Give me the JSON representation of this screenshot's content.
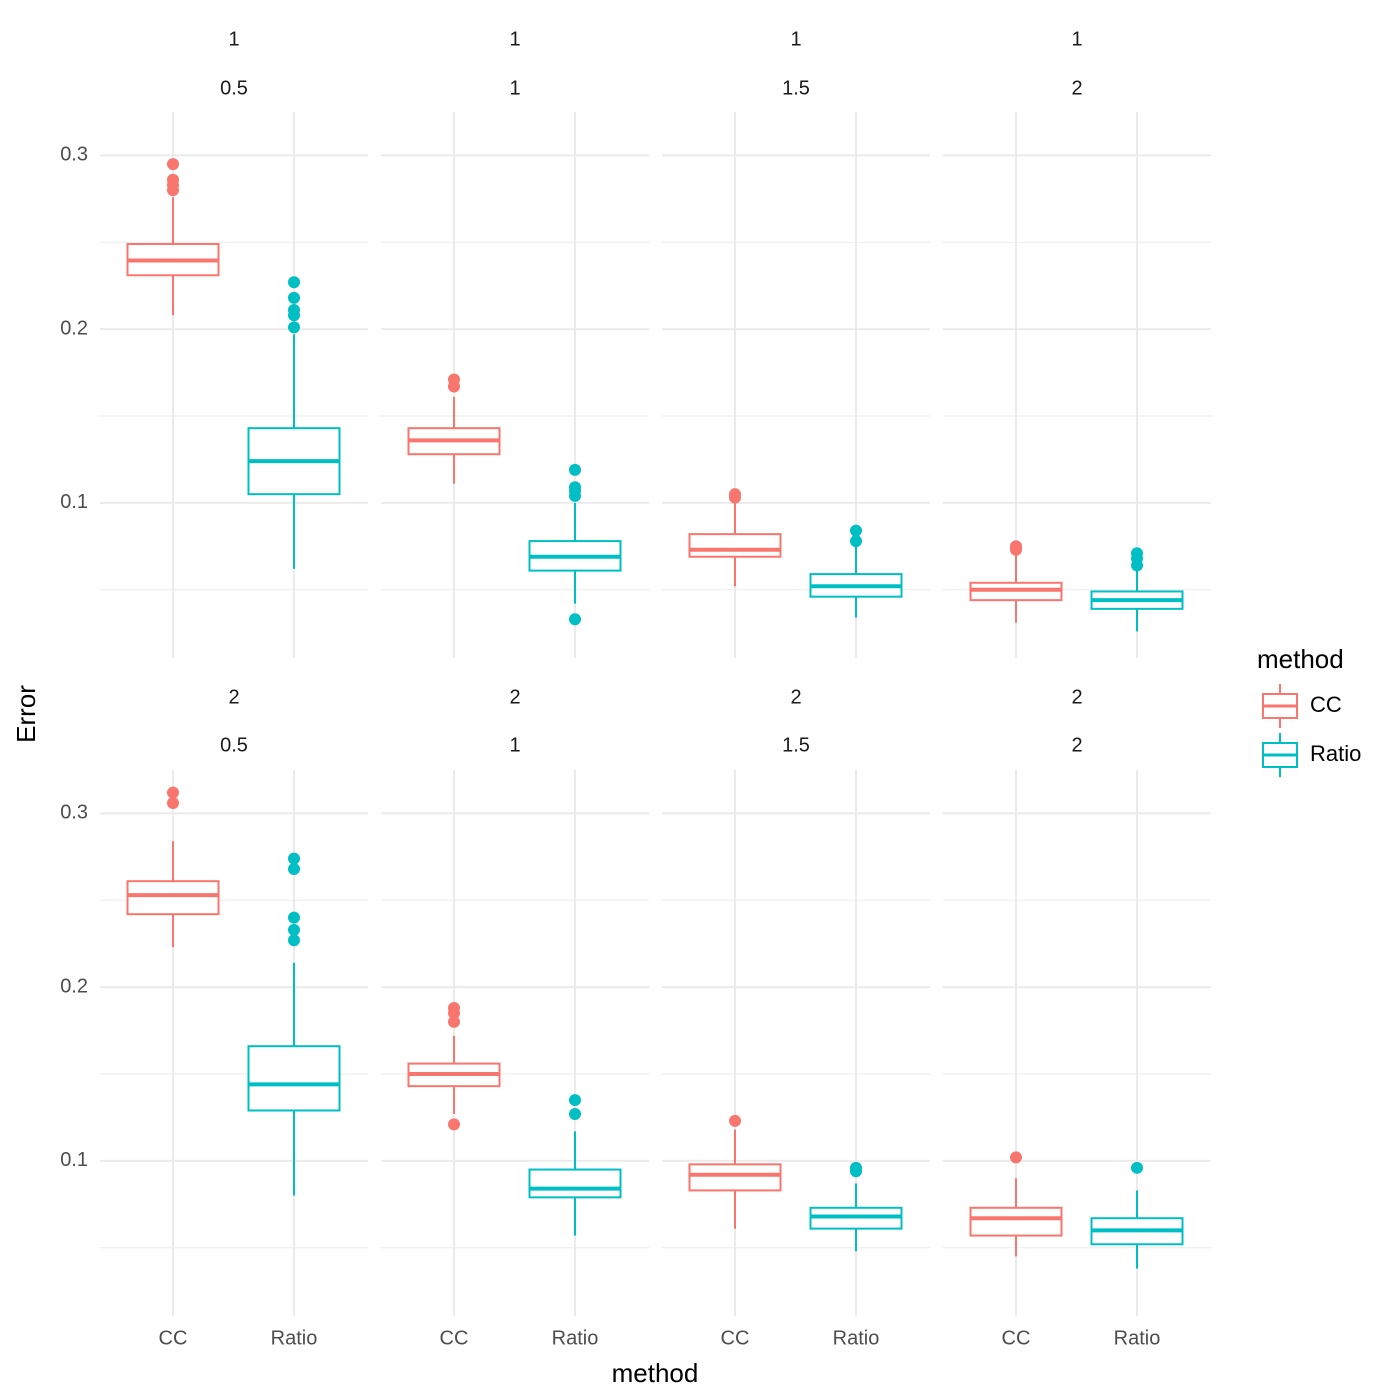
{
  "chart_data": {
    "type": "boxplot",
    "x_label": "method",
    "y_label": "Error",
    "legend_title": "method",
    "legend_position": "right",
    "grid": true,
    "categories": [
      "CC",
      "Ratio"
    ],
    "colors": [
      "#f8766d",
      "#00bfc4"
    ],
    "row_values": [
      1,
      2
    ],
    "col_values": [
      0.5,
      1,
      1.5,
      2
    ],
    "ylim": [
      0.0107,
      0.325
    ],
    "yticks": [
      0.1,
      0.2,
      0.3
    ],
    "minor_yticks": [
      0.05,
      0.15,
      0.25
    ],
    "panels": [
      [
        [
          {
            "whislo": 0.208,
            "q1": 0.231,
            "med": 0.2395,
            "q3": 0.249,
            "whishi": 0.276,
            "outliers": [
              0.295,
              0.286,
              0.283,
              0.28
            ]
          },
          {
            "whislo": 0.062,
            "q1": 0.105,
            "med": 0.124,
            "q3": 0.143,
            "whishi": 0.197,
            "outliers": [
              0.227,
              0.218,
              0.211,
              0.208,
              0.201
            ]
          }
        ],
        [
          {
            "whislo": 0.111,
            "q1": 0.128,
            "med": 0.136,
            "q3": 0.143,
            "whishi": 0.161,
            "outliers": [
              0.171,
              0.167
            ]
          },
          {
            "whislo": 0.042,
            "q1": 0.061,
            "med": 0.069,
            "q3": 0.078,
            "whishi": 0.1,
            "outliers": [
              0.119,
              0.109,
              0.107,
              0.104,
              0.033
            ]
          }
        ],
        [
          {
            "whislo": 0.052,
            "q1": 0.069,
            "med": 0.073,
            "q3": 0.082,
            "whishi": 0.102,
            "outliers": [
              0.105,
              0.103
            ]
          },
          {
            "whislo": 0.034,
            "q1": 0.046,
            "med": 0.052,
            "q3": 0.059,
            "whishi": 0.08,
            "outliers": [
              0.084,
              0.078
            ]
          }
        ],
        [
          {
            "whislo": 0.031,
            "q1": 0.044,
            "med": 0.05,
            "q3": 0.054,
            "whishi": 0.071,
            "outliers": [
              0.075,
              0.073
            ]
          },
          {
            "whislo": 0.026,
            "q1": 0.039,
            "med": 0.044,
            "q3": 0.049,
            "whishi": 0.063,
            "outliers": [
              0.071,
              0.068,
              0.064
            ]
          }
        ]
      ],
      [
        [
          {
            "whislo": 0.223,
            "q1": 0.242,
            "med": 0.253,
            "q3": 0.261,
            "whishi": 0.284,
            "outliers": [
              0.312,
              0.306
            ]
          },
          {
            "whislo": 0.08,
            "q1": 0.129,
            "med": 0.144,
            "q3": 0.166,
            "whishi": 0.214,
            "outliers": [
              0.274,
              0.268,
              0.24,
              0.233,
              0.227
            ]
          }
        ],
        [
          {
            "whislo": 0.127,
            "q1": 0.143,
            "med": 0.15,
            "q3": 0.156,
            "whishi": 0.172,
            "outliers": [
              0.188,
              0.185,
              0.18,
              0.121
            ]
          },
          {
            "whislo": 0.057,
            "q1": 0.079,
            "med": 0.084,
            "q3": 0.095,
            "whishi": 0.117,
            "outliers": [
              0.135,
              0.127
            ]
          }
        ],
        [
          {
            "whislo": 0.061,
            "q1": 0.083,
            "med": 0.092,
            "q3": 0.098,
            "whishi": 0.118,
            "outliers": [
              0.123
            ]
          },
          {
            "whislo": 0.048,
            "q1": 0.061,
            "med": 0.068,
            "q3": 0.073,
            "whishi": 0.087,
            "outliers": [
              0.096,
              0.094
            ]
          }
        ],
        [
          {
            "whislo": 0.045,
            "q1": 0.057,
            "med": 0.067,
            "q3": 0.073,
            "whishi": 0.09,
            "outliers": [
              0.102
            ]
          },
          {
            "whislo": 0.038,
            "q1": 0.052,
            "med": 0.06,
            "q3": 0.067,
            "whishi": 0.083,
            "outliers": [
              0.096
            ]
          }
        ]
      ]
    ]
  }
}
